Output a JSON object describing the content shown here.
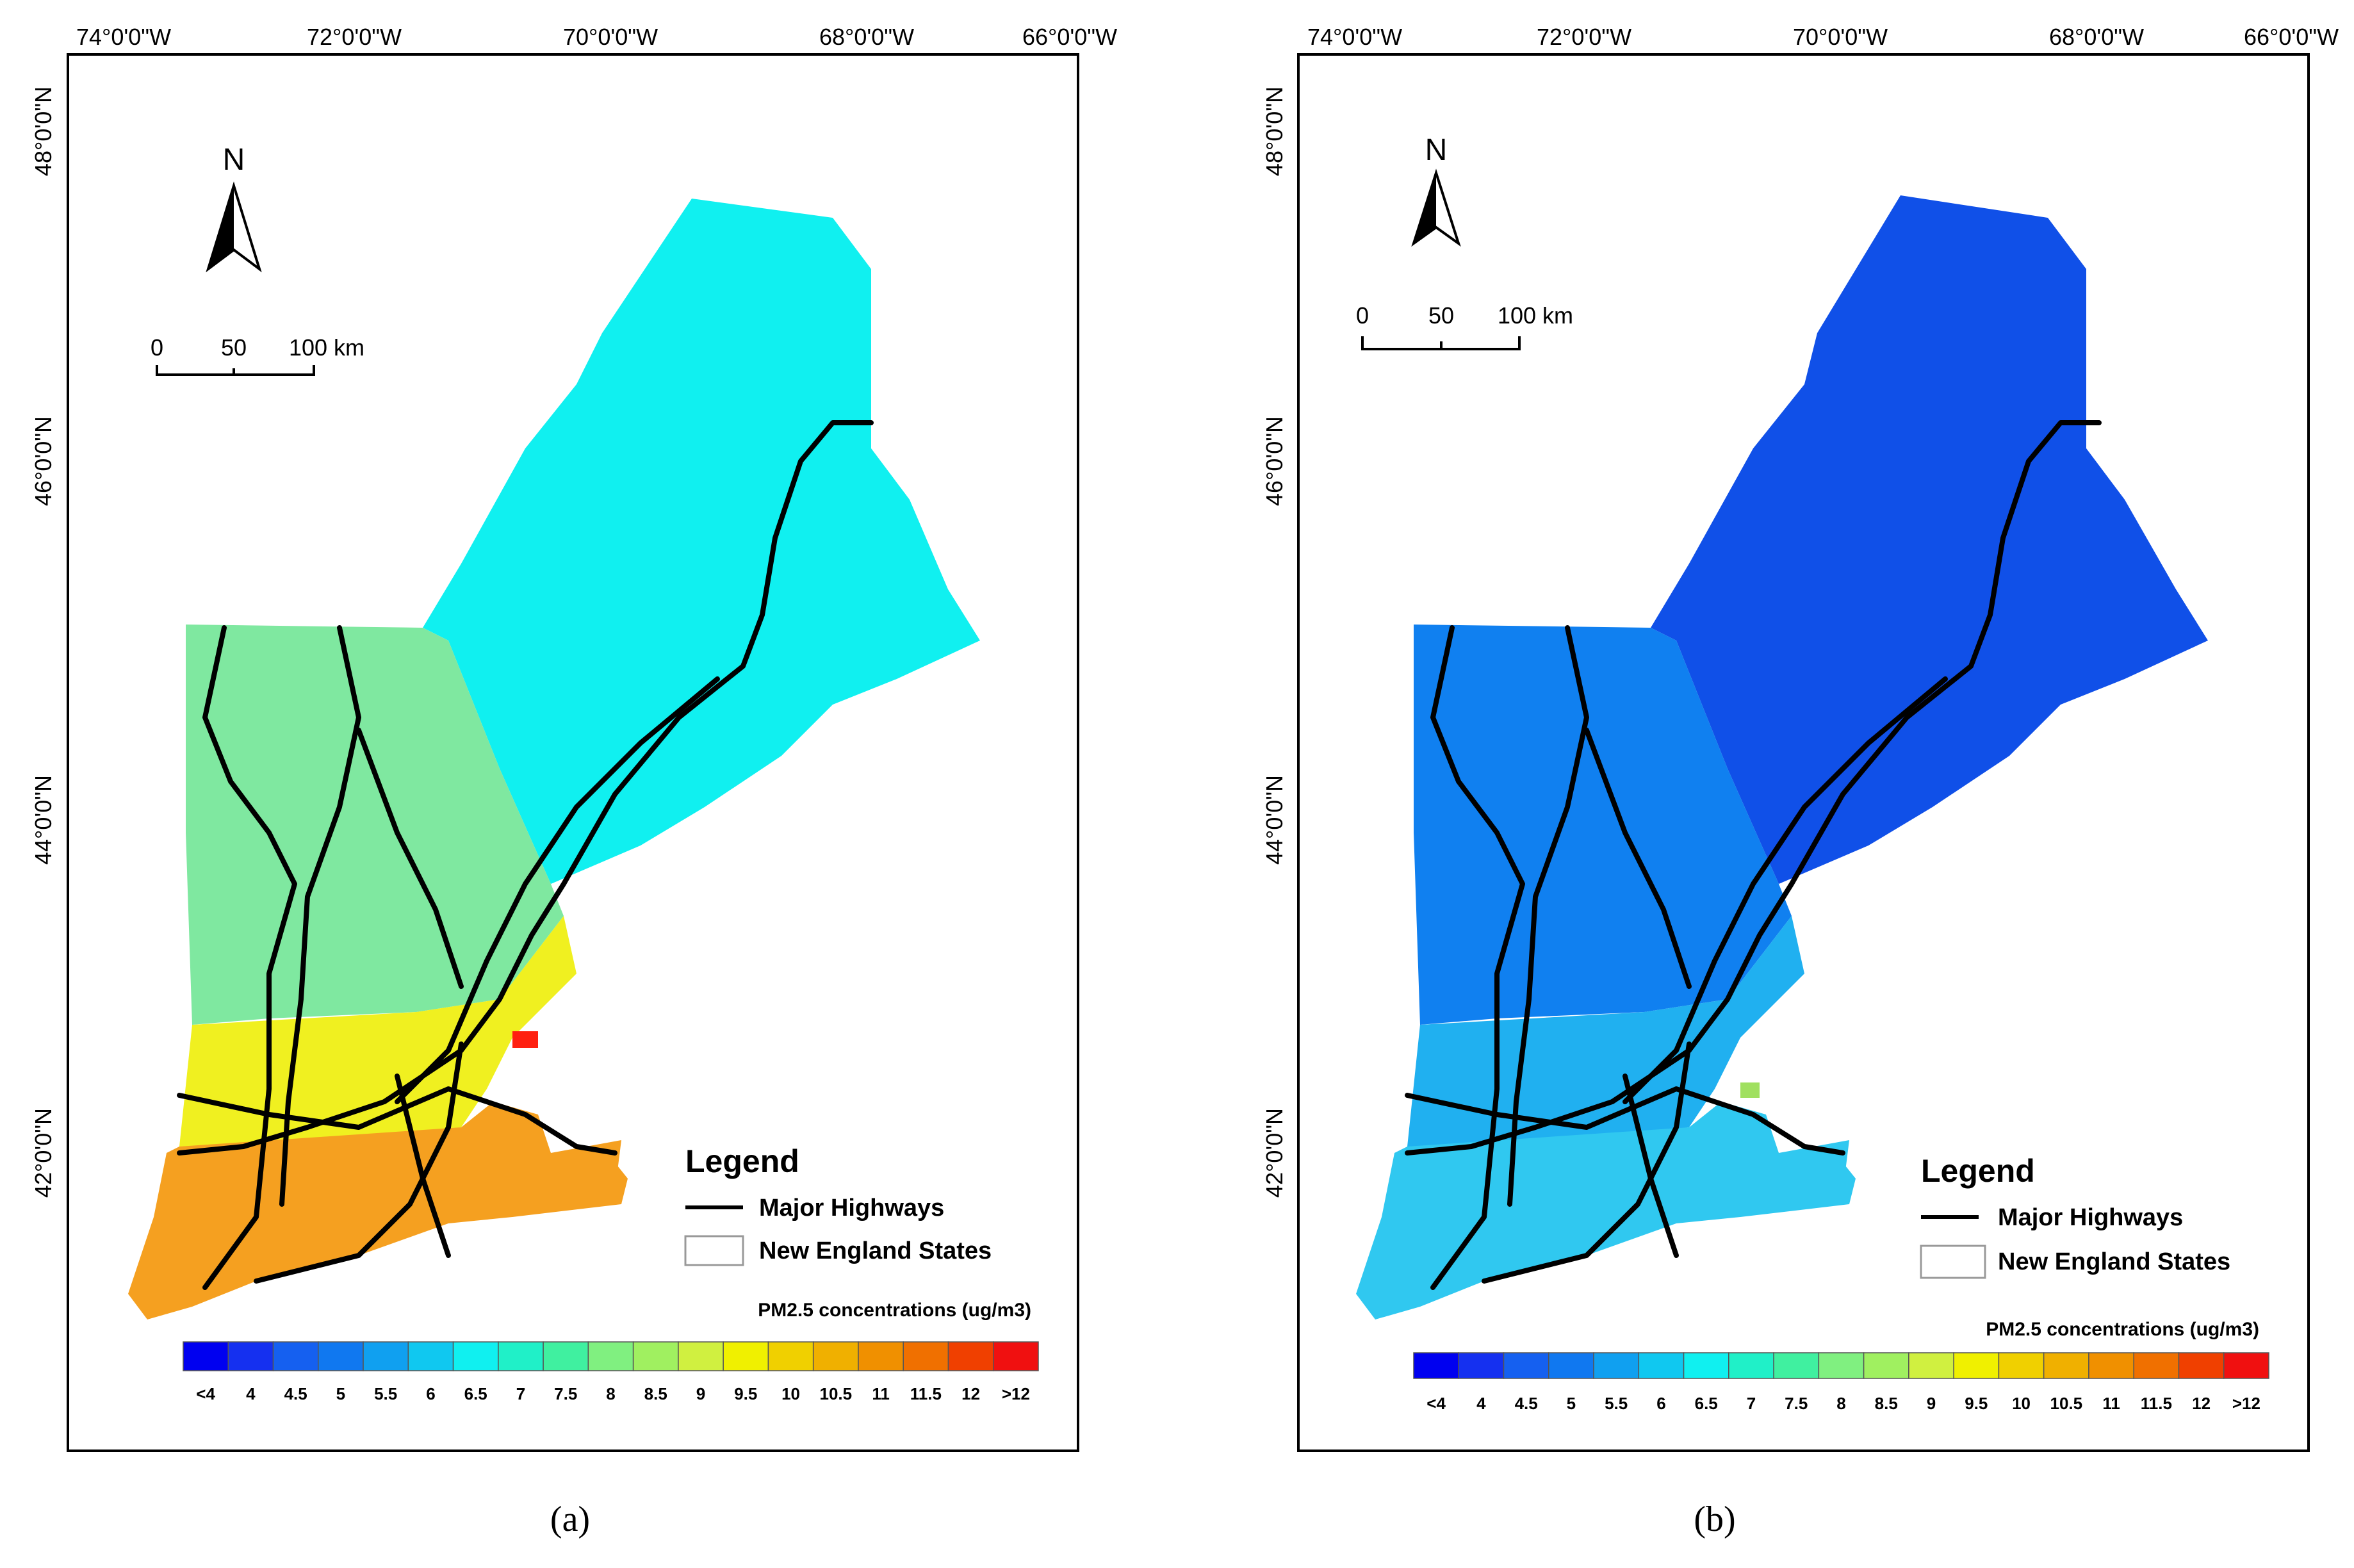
{
  "panels": [
    {
      "label": "(a)",
      "lon_ticks": [
        "74°0'0\"W",
        "72°0'0\"W",
        "70°0'0\"W",
        "68°0'0\"W",
        "66°0'0\"W"
      ],
      "lat_ticks": [
        "48°0'0\"N",
        "46°0'0\"N",
        "44°0'0\"N",
        "42°0'0\"N"
      ],
      "north_label": "N",
      "scale": {
        "labels": [
          "0",
          "50",
          "100 km"
        ]
      },
      "legend": {
        "title": "Legend",
        "items": [
          "Major Highways",
          "New England States"
        ]
      },
      "colorbar": {
        "title": "PM2.5 concentrations (ug/m3)"
      },
      "palette": {
        "north": "#10f0f0",
        "middle": "#7fe8a0",
        "south": "#f0f020",
        "southwest": "#f5a020",
        "hotspot": "#ff2010"
      }
    },
    {
      "label": "(b)",
      "lon_ticks": [
        "74°0'0\"W",
        "72°0'0\"W",
        "70°0'0\"W",
        "68°0'0\"W",
        "66°0'0\"W"
      ],
      "lat_ticks": [
        "48°0'0\"N",
        "46°0'0\"N",
        "44°0'0\"N",
        "42°0'0\"N"
      ],
      "north_label": "N",
      "scale": {
        "labels": [
          "0",
          "50",
          "100 km"
        ]
      },
      "legend": {
        "title": "Legend",
        "items": [
          "Major Highways",
          "New England States"
        ]
      },
      "colorbar": {
        "title": "PM2.5 concentrations (ug/m3)"
      },
      "palette": {
        "north": "#1050e8",
        "middle": "#1080f0",
        "south": "#20b0f0",
        "southwest": "#30c8f0",
        "hotspot": "#a0e060"
      }
    }
  ],
  "colorbar_classes": {
    "labels": [
      "<4",
      "4",
      "4.5",
      "5",
      "5.5",
      "6",
      "6.5",
      "7",
      "7.5",
      "8",
      "8.5",
      "9",
      "9.5",
      "10",
      "10.5",
      "11",
      "11.5",
      "12",
      ">12"
    ],
    "colors": [
      "#0000f0",
      "#1530f0",
      "#1560f0",
      "#1078f0",
      "#10a0f0",
      "#10c8f0",
      "#10f0f0",
      "#20f0c8",
      "#40f0a0",
      "#80f080",
      "#a0f060",
      "#d0f040",
      "#f0f000",
      "#f0d000",
      "#f0b000",
      "#f09000",
      "#f07000",
      "#f04000",
      "#f01010"
    ]
  }
}
